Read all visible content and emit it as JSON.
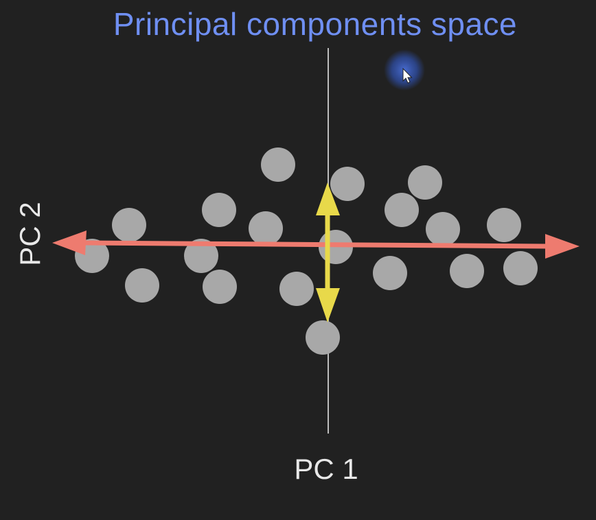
{
  "title": "Principal components space",
  "axes": {
    "x_label": "PC 1",
    "y_label": "PC 2"
  },
  "colors": {
    "background": "#212121",
    "title": "#6f8ff2",
    "label": "#e8e8e8",
    "points": "#a8a8a8",
    "pc1_arrow": "#ee7b6f",
    "pc2_arrow": "#e8d94a",
    "axis_line": "#bdbdbd",
    "cursor_halo": "#2f4fa8"
  },
  "icons": {
    "cursor": "mouse-pointer-icon"
  }
}
